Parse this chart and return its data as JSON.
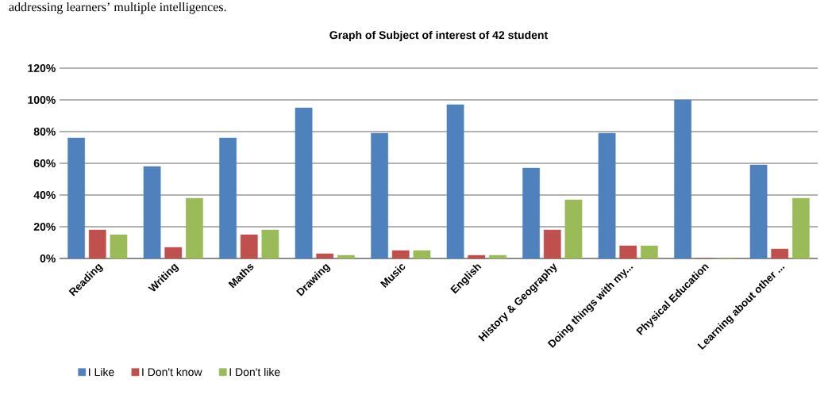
{
  "chart_data": {
    "type": "bar",
    "title": "Graph of Subject of interest of 42 student",
    "annotations": [
      "addressing learners’ multiple intelligences."
    ],
    "categories": [
      "Reading",
      "Writing",
      "Maths",
      "Drawing",
      "Music",
      "English",
      "History & Geography",
      "Doing things with my...",
      "Physical Education",
      "Learning about other ..."
    ],
    "series": [
      {
        "name": "I Like",
        "color": "#4f81bd",
        "values": [
          76,
          58,
          76,
          95,
          79,
          97,
          57,
          79,
          100,
          59
        ]
      },
      {
        "name": "I Don't know",
        "color": "#c0504d",
        "values": [
          18,
          7,
          15,
          3,
          5,
          2,
          18,
          8,
          0,
          6
        ]
      },
      {
        "name": "I Don't like",
        "color": "#9bbb59",
        "values": [
          15,
          38,
          18,
          2,
          5,
          2,
          37,
          8,
          0,
          38
        ]
      }
    ],
    "ylim": [
      0,
      120
    ],
    "yticks": [
      {
        "value": 0,
        "label": "0%"
      },
      {
        "value": 20,
        "label": "20%"
      },
      {
        "value": 40,
        "label": "40%"
      },
      {
        "value": 60,
        "label": "60%"
      },
      {
        "value": 80,
        "label": "80%"
      },
      {
        "value": 100,
        "label": "100%"
      },
      {
        "value": 120,
        "label": "120%"
      }
    ],
    "grid": "y",
    "legend": "bottom left"
  }
}
